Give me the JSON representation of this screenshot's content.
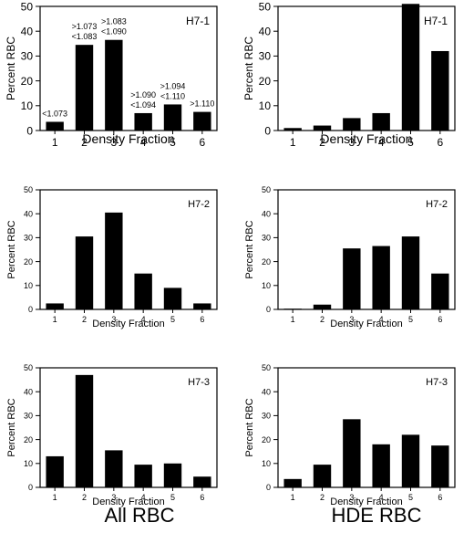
{
  "column_labels": [
    "All RBC",
    "HDE RBC"
  ],
  "chart_data": [
    {
      "type": "bar",
      "panel_label": "H7-1",
      "categories": [
        "1",
        "2",
        "3",
        "4",
        "5",
        "6"
      ],
      "values": [
        3.5,
        34.5,
        36.5,
        7,
        10.5,
        7.5
      ],
      "bar_labels": [
        [
          "<1.073"
        ],
        [
          ">1.073",
          "<1.083"
        ],
        [
          ">1.083",
          "<1.090"
        ],
        [
          ">1.090",
          "<1.094"
        ],
        [
          ">1.094",
          "<1.110"
        ],
        [
          ">1.110"
        ]
      ],
      "xlabel": "Density Fraction",
      "ylabel": "Percent RBC",
      "ylim": [
        0,
        50
      ],
      "yticks": [
        0,
        10,
        20,
        30,
        40,
        50
      ],
      "grid": false
    },
    {
      "type": "bar",
      "panel_label": "H7-1",
      "categories": [
        "1",
        "2",
        "3",
        "4",
        "5",
        "6"
      ],
      "values": [
        1,
        2,
        5,
        7,
        51,
        32
      ],
      "xlabel": "Density Fraction",
      "ylabel": "Percent RBC",
      "ylim": [
        0,
        50
      ],
      "yticks": [
        0,
        10,
        20,
        30,
        40,
        50
      ],
      "grid": false
    },
    {
      "type": "bar",
      "panel_label": "H7-2",
      "categories": [
        "1",
        "2",
        "3",
        "4",
        "5",
        "6"
      ],
      "values": [
        2.5,
        30.5,
        40.5,
        15,
        9,
        2.5
      ],
      "xlabel": "Density Fraction",
      "ylabel": "Percent RBC",
      "ylim": [
        0,
        50
      ],
      "yticks": [
        0,
        10,
        20,
        30,
        40,
        50
      ],
      "grid": false
    },
    {
      "type": "bar",
      "panel_label": "H7-2",
      "categories": [
        "1",
        "2",
        "3",
        "4",
        "5",
        "6"
      ],
      "values": [
        0.3,
        2,
        25.5,
        26.5,
        30.5,
        15
      ],
      "xlabel": "Density Fraction",
      "ylabel": "Percent RBC",
      "ylim": [
        0,
        50
      ],
      "yticks": [
        0,
        10,
        20,
        30,
        40,
        50
      ],
      "grid": false
    },
    {
      "type": "bar",
      "panel_label": "H7-3",
      "categories": [
        "1",
        "2",
        "3",
        "4",
        "5",
        "6"
      ],
      "values": [
        13,
        47,
        15.5,
        9.5,
        10,
        4.5
      ],
      "xlabel": "Density Fraction",
      "ylabel": "Percent RBC",
      "ylim": [
        0,
        50
      ],
      "yticks": [
        0,
        10,
        20,
        30,
        40,
        50
      ],
      "grid": false
    },
    {
      "type": "bar",
      "panel_label": "H7-3",
      "categories": [
        "1",
        "2",
        "3",
        "4",
        "5",
        "6"
      ],
      "values": [
        3.5,
        9.5,
        28.5,
        18,
        22,
        17.5
      ],
      "xlabel": "Density Fraction",
      "ylabel": "Percent RBC",
      "ylim": [
        0,
        50
      ],
      "yticks": [
        0,
        10,
        20,
        30,
        40,
        50
      ],
      "grid": false
    }
  ]
}
